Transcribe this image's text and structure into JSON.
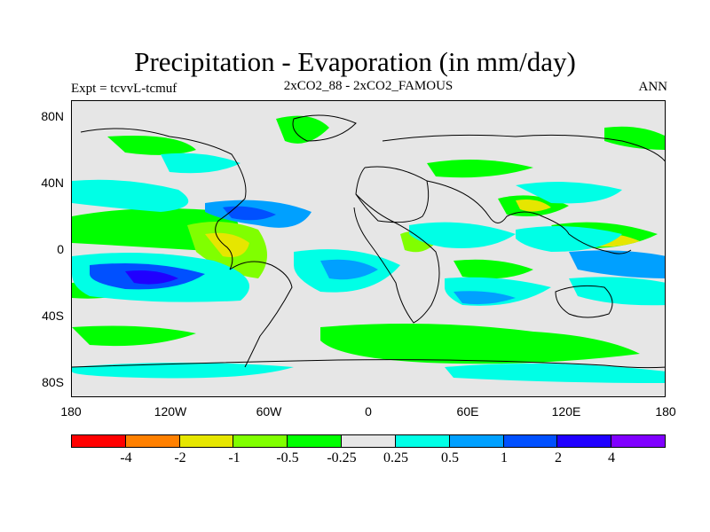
{
  "header": {
    "title": "Precipitation - Evaporation (in mm/day)",
    "expt": "Expt = tcvvL-tcmuf",
    "subtitle": "2xCO2_88 - 2xCO2_FAMOUS",
    "season": "ANN"
  },
  "map": {
    "type": "filled-contour-map",
    "projection": "cylindrical-equidistant",
    "background_color": "#e6e6e6",
    "y_ticks": [
      "80N",
      "40N",
      "0",
      "40S",
      "80S"
    ],
    "x_ticks": [
      "180",
      "120W",
      "60W",
      "0",
      "60E",
      "120E",
      "180"
    ]
  },
  "colorbar": {
    "colors": [
      "#ff0000",
      "#ff8000",
      "#e6e600",
      "#80ff00",
      "#00ff00",
      "#e6e6e6",
      "#00ffe6",
      "#00a0ff",
      "#0050ff",
      "#2000ff",
      "#8000ff"
    ],
    "labels": [
      "-4",
      "-2",
      "-1",
      "-0.5",
      "-0.25",
      "0.25",
      "0.5",
      "1",
      "2",
      "4"
    ]
  }
}
